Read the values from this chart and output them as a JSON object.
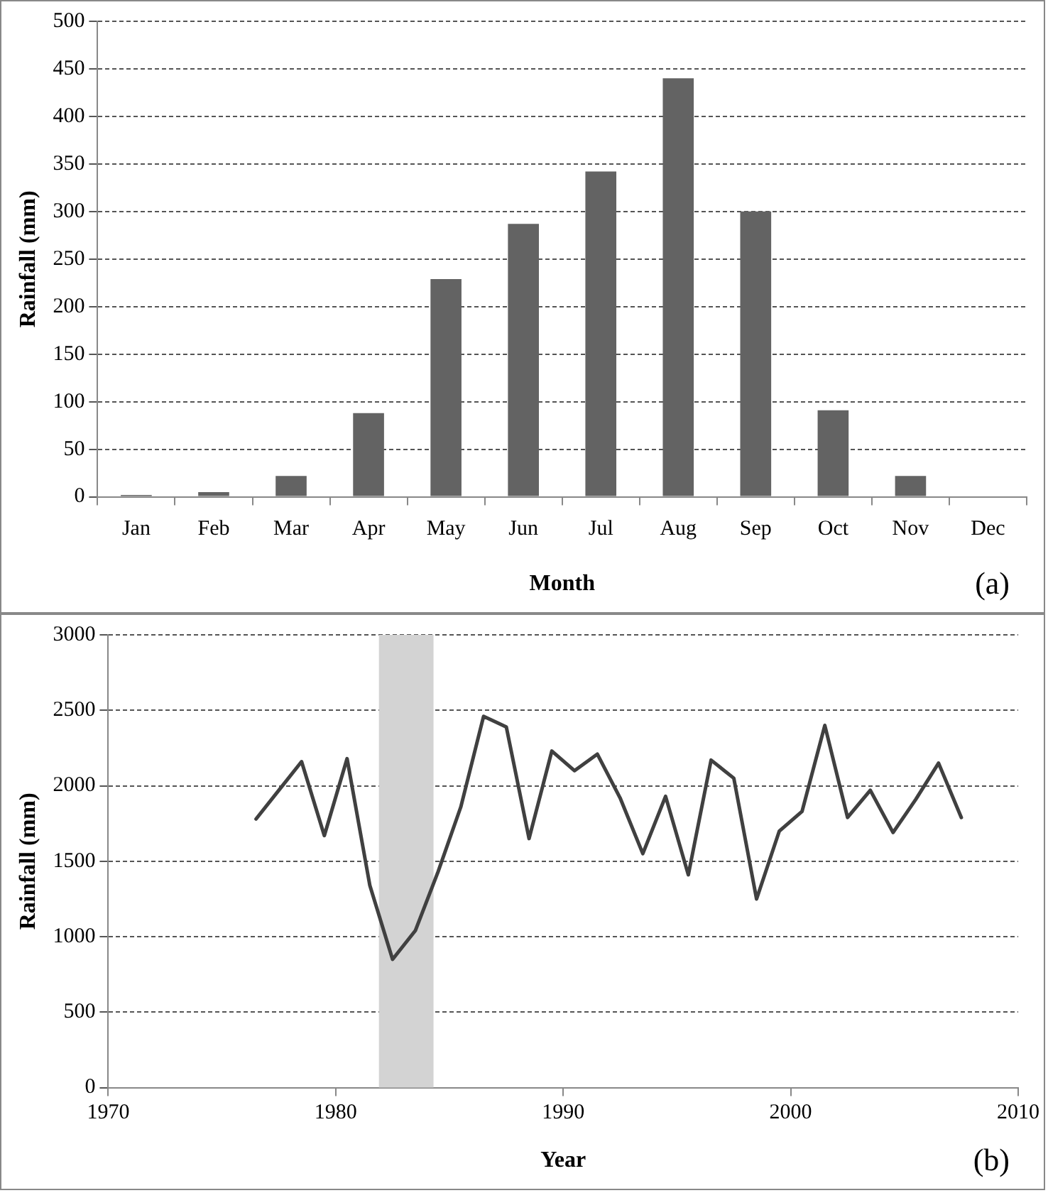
{
  "chart_data": [
    {
      "type": "bar",
      "xlabel": "Month",
      "ylabel": "Rainfall (mm)",
      "categories": [
        "Jan",
        "Feb",
        "Mar",
        "Apr",
        "May",
        "Jun",
        "Jul",
        "Aug",
        "Sep",
        "Oct",
        "Nov",
        "Dec"
      ],
      "values": [
        2,
        5,
        22,
        88,
        229,
        287,
        342,
        440,
        300,
        91,
        22,
        0
      ],
      "color": "#636363",
      "ylim": [
        0,
        500
      ],
      "yticks": [
        0,
        50,
        100,
        150,
        200,
        250,
        300,
        350,
        400,
        450,
        500
      ],
      "grid": "y",
      "legend": false,
      "annotations": [
        "(a)"
      ]
    },
    {
      "type": "line",
      "xlabel": "Year",
      "ylabel": "Rainfall (mm)",
      "x": [
        1976.5,
        1977.5,
        1978.5,
        1979.5,
        1980.5,
        1981.5,
        1982.5,
        1983.5,
        1984.5,
        1985.5,
        1986.5,
        1987.5,
        1988.5,
        1989.5,
        1990.5,
        1991.5,
        1992.5,
        1993.5,
        1994.5,
        1995.5,
        1996.5,
        1997.5,
        1998.5,
        1999.5,
        2000.5,
        2001.5,
        2002.5,
        2003.5,
        2004.5,
        2005.5,
        2006.5,
        2007.5
      ],
      "values": [
        1780,
        1970,
        2160,
        1670,
        2180,
        1340,
        850,
        1040,
        1430,
        1860,
        2460,
        2390,
        1650,
        2230,
        2100,
        2210,
        1920,
        1550,
        1930,
        1410,
        2170,
        2050,
        1250,
        1700,
        1830,
        2400,
        1790,
        1970,
        1690,
        1910,
        2150,
        1790
      ],
      "color": "#404040",
      "marker": "none",
      "line_style": "solid",
      "xlim": [
        1970,
        2010
      ],
      "xticks": [
        1970,
        1980,
        1990,
        2000,
        2010
      ],
      "ylim": [
        0,
        3000
      ],
      "yticks": [
        0,
        500,
        1000,
        1500,
        2000,
        2500,
        3000
      ],
      "grid": "y",
      "legend": false,
      "bands": [
        {
          "axis": "x",
          "from": 1981.9,
          "to": 1984.3,
          "color": "#d3d3d3"
        }
      ],
      "annotations": [
        "(b)"
      ]
    }
  ]
}
